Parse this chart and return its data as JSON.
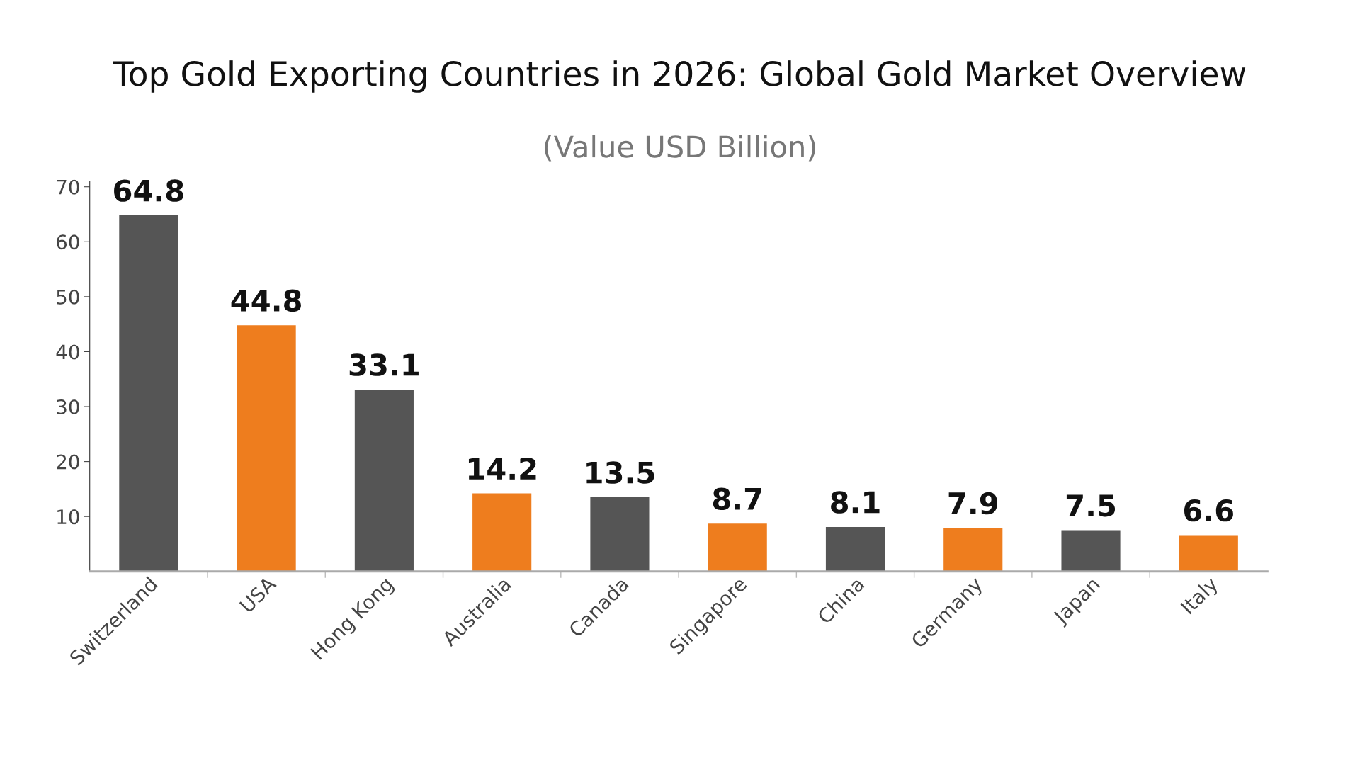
{
  "chart_data": {
    "type": "bar",
    "title": "Top Gold Exporting Countries in 2026: Global Gold Market Overview",
    "subtitle": "(Value USD Billion)",
    "categories": [
      "Switzerland",
      "USA",
      "Hong Kong",
      "Australia",
      "Canada",
      "Singapore",
      "China",
      "Germany",
      "Japan",
      "Italy"
    ],
    "values": [
      64.8,
      44.8,
      33.1,
      14.2,
      13.5,
      8.7,
      8.1,
      7.9,
      7.5,
      6.6
    ],
    "colors": [
      "#555555",
      "#ee7d1e",
      "#555555",
      "#ee7d1e",
      "#555555",
      "#ee7d1e",
      "#555555",
      "#ee7d1e",
      "#555555",
      "#ee7d1e"
    ],
    "ylim": [
      0,
      71
    ],
    "yticks": [
      10,
      20,
      30,
      40,
      50,
      60,
      70
    ],
    "grid": false,
    "legend": false,
    "data_labels": true
  }
}
